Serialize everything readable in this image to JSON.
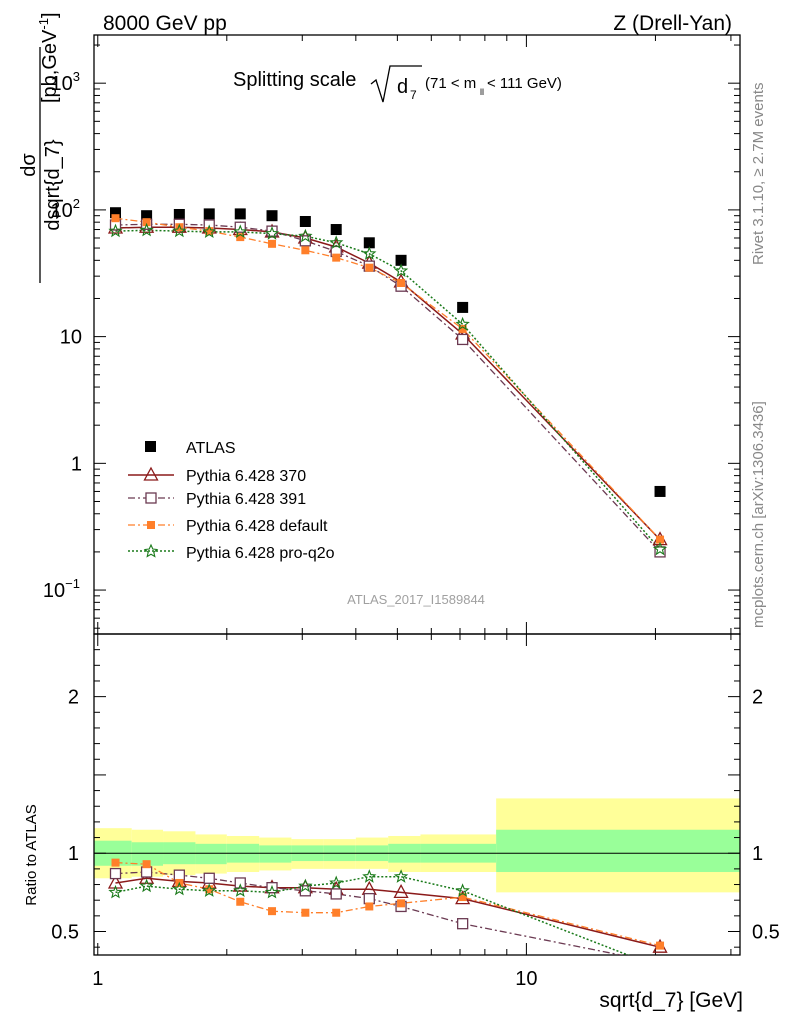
{
  "header": {
    "left": "8000 GeV pp",
    "right": "Z (Drell-Yan)"
  },
  "side_text": {
    "rivet": "Rivet 3.1.10, ≥ 2.7M events",
    "mcplots": "mcplots.cern.ch [arXiv:1306.3436]"
  },
  "plot_title": {
    "main": "Splitting scale",
    "var": "d",
    "var_sub": "7",
    "range_open": "(71 < m",
    "range_sub": "ll",
    "range_close": " < 111 GeV)"
  },
  "watermark": "ATLAS_2017_I1589844",
  "ylabel_top": {
    "num": "dσ",
    "den": "dsqrt{d_7}",
    "unit": "[pb,GeV",
    "unit_sup": "-1",
    "unit_close": "]"
  },
  "ylabel_bottom": "Ratio to ATLAS",
  "xlabel": "sqrt{d_7} [GeV]",
  "main_ticks": {
    "y": [
      {
        "base": "10",
        "exp": "3",
        "value": 1000
      },
      {
        "base": "10",
        "exp": "2",
        "value": 100
      },
      {
        "base": "10",
        "exp": "",
        "value": 10
      },
      {
        "base": "1",
        "exp": "",
        "value": 1
      },
      {
        "base": "10",
        "exp": "−1",
        "value": 0.1
      }
    ]
  },
  "ratio_ticks": {
    "y": [
      {
        "label": "2",
        "value": 2
      },
      {
        "label": "1",
        "value": 1
      },
      {
        "label": "0.5",
        "value": 0.5
      }
    ]
  },
  "x_ticks": [
    {
      "label": "1",
      "value": 1
    },
    {
      "label": "10",
      "value": 10
    }
  ],
  "legend": [
    {
      "key": "atlas",
      "label": "ATLAS"
    },
    {
      "key": "p370",
      "label": "Pythia 6.428 370"
    },
    {
      "key": "p391",
      "label": "Pythia 6.428 391"
    },
    {
      "key": "pdef",
      "label": "Pythia 6.428 default"
    },
    {
      "key": "pq2o",
      "label": "Pythia 6.428 pro-q2o"
    }
  ],
  "colors": {
    "atlas": "#000000",
    "p370": "#8b1a1a",
    "p391": "#6b3a52",
    "pdef": "#ff7f2a",
    "pq2o": "#1a7a1a",
    "band_inner": "#99ff99",
    "band_outer": "#ffff99"
  },
  "chart_data": {
    "type": "scatter",
    "x_scale": "log",
    "y_scale": "log",
    "xlim": [
      0.98,
      31.5
    ],
    "ylim": [
      0.045,
      2400
    ],
    "ratio_ylim": [
      0.35,
      2.4
    ],
    "x": [
      1.1,
      1.3,
      1.55,
      1.82,
      2.15,
      2.55,
      3.05,
      3.6,
      4.3,
      5.1,
      7.1,
      20.5
    ],
    "series": [
      {
        "key": "atlas",
        "name": "ATLAS",
        "values": [
          95,
          90,
          92,
          93,
          93,
          90,
          81,
          70,
          55,
          40,
          17,
          0.6
        ]
      },
      {
        "key": "p370",
        "name": "Pythia 6.428 370",
        "values": [
          72,
          73,
          73,
          72,
          70,
          67,
          60,
          51,
          38,
          27,
          10.5,
          0.25
        ]
      },
      {
        "key": "p391",
        "name": "Pythia 6.428 391",
        "values": [
          76,
          77,
          77,
          76,
          73,
          68,
          57,
          47,
          36,
          25,
          9.5,
          0.2
        ]
      },
      {
        "key": "pdef",
        "name": "Pythia 6.428 default",
        "values": [
          86,
          80,
          73,
          68,
          61,
          54,
          48,
          42,
          35,
          26.5,
          11.5,
          0.25
        ]
      },
      {
        "key": "pq2o",
        "name": "Pythia 6.428 pro-q2o",
        "values": [
          68,
          69,
          68,
          67,
          67,
          65,
          62,
          55,
          45,
          33,
          12.5,
          0.21
        ]
      }
    ],
    "ratio": {
      "x": [
        1.1,
        1.3,
        1.55,
        1.82,
        2.15,
        2.55,
        3.05,
        3.6,
        4.3,
        5.1,
        7.1,
        20.5
      ],
      "series": [
        {
          "key": "p370",
          "values": [
            0.81,
            0.84,
            0.82,
            0.81,
            0.79,
            0.78,
            0.78,
            0.77,
            0.77,
            0.75,
            0.71,
            0.4
          ]
        },
        {
          "key": "p391",
          "values": [
            0.87,
            0.88,
            0.86,
            0.84,
            0.81,
            0.78,
            0.76,
            0.74,
            0.71,
            0.66,
            0.55,
            0.3
          ]
        },
        {
          "key": "pdef",
          "values": [
            0.94,
            0.93,
            0.81,
            0.77,
            0.69,
            0.63,
            0.62,
            0.62,
            0.66,
            0.68,
            0.72,
            0.41
          ]
        },
        {
          "key": "pq2o",
          "values": [
            0.75,
            0.79,
            0.77,
            0.76,
            0.76,
            0.75,
            0.79,
            0.81,
            0.85,
            0.85,
            0.76,
            0.27
          ]
        }
      ],
      "bands": [
        {
          "xlo": 0.98,
          "xhi": 1.2,
          "inner": [
            0.92,
            1.08
          ],
          "outer": [
            0.84,
            1.16
          ]
        },
        {
          "xlo": 1.2,
          "xhi": 1.42,
          "inner": [
            0.92,
            1.07
          ],
          "outer": [
            0.85,
            1.15
          ]
        },
        {
          "xlo": 1.42,
          "xhi": 1.69,
          "inner": [
            0.93,
            1.07
          ],
          "outer": [
            0.86,
            1.14
          ]
        },
        {
          "xlo": 1.69,
          "xhi": 2.0,
          "inner": [
            0.93,
            1.06
          ],
          "outer": [
            0.87,
            1.12
          ]
        },
        {
          "xlo": 2.0,
          "xhi": 2.38,
          "inner": [
            0.94,
            1.06
          ],
          "outer": [
            0.88,
            1.11
          ]
        },
        {
          "xlo": 2.38,
          "xhi": 2.83,
          "inner": [
            0.94,
            1.05
          ],
          "outer": [
            0.89,
            1.1
          ]
        },
        {
          "xlo": 2.83,
          "xhi": 3.36,
          "inner": [
            0.95,
            1.05
          ],
          "outer": [
            0.9,
            1.09
          ]
        },
        {
          "xlo": 3.36,
          "xhi": 4.0,
          "inner": [
            0.95,
            1.05
          ],
          "outer": [
            0.9,
            1.09
          ]
        },
        {
          "xlo": 4.0,
          "xhi": 4.76,
          "inner": [
            0.95,
            1.05
          ],
          "outer": [
            0.9,
            1.1
          ]
        },
        {
          "xlo": 4.76,
          "xhi": 5.66,
          "inner": [
            0.94,
            1.06
          ],
          "outer": [
            0.88,
            1.11
          ]
        },
        {
          "xlo": 5.66,
          "xhi": 8.5,
          "inner": [
            0.94,
            1.06
          ],
          "outer": [
            0.88,
            1.12
          ]
        },
        {
          "xlo": 8.5,
          "xhi": 31.5,
          "inner": [
            0.88,
            1.15
          ],
          "outer": [
            0.75,
            1.35
          ]
        }
      ]
    }
  }
}
